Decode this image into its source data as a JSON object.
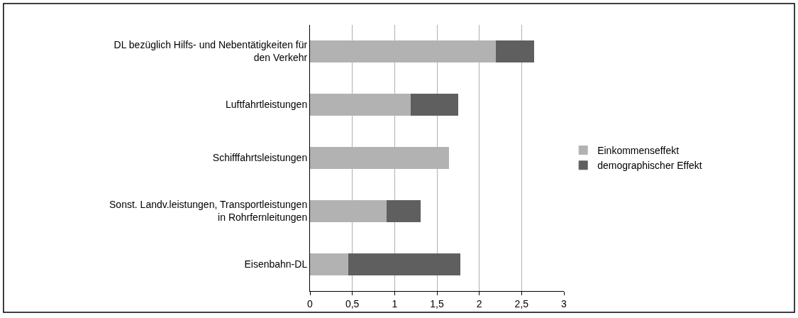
{
  "chart_data": {
    "type": "bar",
    "orientation": "horizontal",
    "stacked": true,
    "categories": [
      "DL bezüglich Hilfs- und Nebentätigkeiten für den Verkehr",
      "Luftfahrtleistungen",
      "Schifffahrtsleistungen",
      "Sonst. Landv.leistungen, Transportleistungen in Rohrfernleitungen",
      "Eisenbahn-DL"
    ],
    "series": [
      {
        "name": "Einkommenseffekt",
        "color": "#b2b2b2",
        "values": [
          2.2,
          1.19,
          1.64,
          0.91,
          0.46
        ]
      },
      {
        "name": "demographischer Effekt",
        "color": "#5f5f5f",
        "values": [
          0.44,
          0.56,
          null,
          0.39,
          1.31
        ]
      }
    ],
    "xlim": [
      0,
      3
    ],
    "xticks": [
      0,
      {
        "value": 0.5,
        "label": "0,5"
      },
      1,
      {
        "value": 1.5,
        "label": "1,5"
      },
      2,
      {
        "value": 2.5,
        "label": "2,5"
      },
      3
    ],
    "grid": "x",
    "legend": "right"
  }
}
